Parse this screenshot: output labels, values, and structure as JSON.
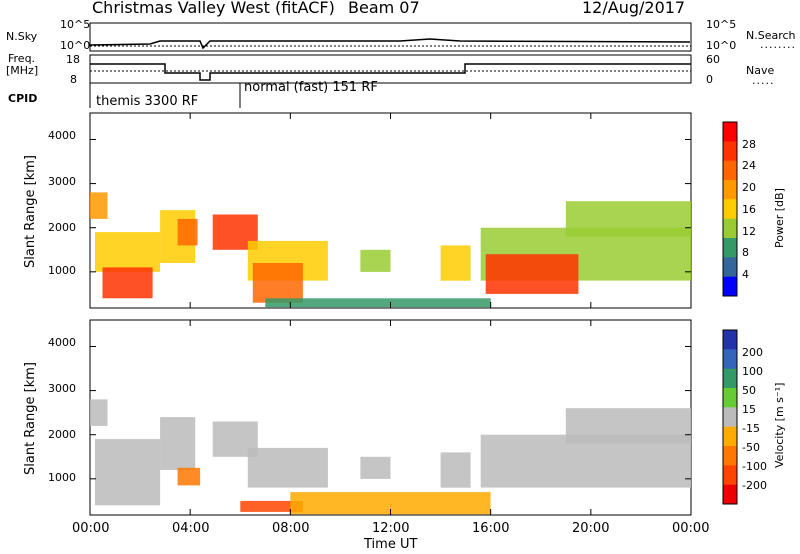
{
  "header": {
    "title": "Christmas Valley West (fitACF)",
    "beam": "Beam 07",
    "date": "12/Aug/2017"
  },
  "panels": {
    "nsky": {
      "left_label": "N.Sky",
      "right_label": "N.Search",
      "left_ticks": [
        "10^5",
        "10^0"
      ],
      "right_ticks": [
        "10^5",
        "10^0"
      ]
    },
    "freq": {
      "left_label_1": "Freq.",
      "left_label_2": "[MHz]",
      "right_label": "Nave",
      "left_ticks": [
        "18",
        "8"
      ],
      "right_ticks": [
        "60",
        "0"
      ]
    },
    "cpid": {
      "label": "CPID",
      "modes": [
        {
          "name": "themis 3300 RF",
          "start_hour": 0.0
        },
        {
          "name": "normal (fast) 151 RF",
          "start_hour": 6.0
        }
      ]
    }
  },
  "axes": {
    "ylabel": "Slant Range [km]",
    "yticks": [
      "4000",
      "3000",
      "2000",
      "1000"
    ],
    "xlabel": "Time UT",
    "xticks": [
      "00:00",
      "04:00",
      "08:00",
      "12:00",
      "16:00",
      "20:00",
      "00:00"
    ]
  },
  "colorbars": {
    "power": {
      "label": "Power [dB]",
      "ticks": [
        "28",
        "24",
        "20",
        "16",
        "12",
        "8",
        "4"
      ],
      "colors": [
        "#ff0000",
        "#ff3300",
        "#ff6600",
        "#ff9900",
        "#ffcc00",
        "#99cc33",
        "#339966",
        "#336699",
        "#0000ff"
      ]
    },
    "velocity": {
      "label": "Velocity [m s⁻¹]",
      "ticks": [
        "200",
        "100",
        "50",
        "15",
        "-15",
        "-50",
        "-100",
        "-200"
      ],
      "colors": [
        "#2233aa",
        "#3366bb",
        "#339966",
        "#66cc33",
        "#bbbbbb",
        "#ffaa00",
        "#ff7700",
        "#ff4400",
        "#ee0000"
      ]
    }
  },
  "chart_data": [
    {
      "type": "heatmap",
      "title": "Power",
      "xlabel": "Time UT",
      "ylabel": "Slant Range [km]",
      "xlim_hours": [
        0,
        24
      ],
      "ylim_km": [
        180,
        4600
      ],
      "colorbar_range_dB": [
        0,
        30
      ],
      "regions": [
        {
          "t0": 0.0,
          "t1": 0.7,
          "r0": 2200,
          "r1": 2800,
          "value": 18
        },
        {
          "t0": 0.2,
          "t1": 2.8,
          "r0": 1000,
          "r1": 1900,
          "value": 14
        },
        {
          "t0": 0.5,
          "t1": 2.5,
          "r0": 400,
          "r1": 1100,
          "value": 26
        },
        {
          "t0": 2.8,
          "t1": 4.2,
          "r0": 1200,
          "r1": 2400,
          "value": 15
        },
        {
          "t0": 3.5,
          "t1": 4.3,
          "r0": 1600,
          "r1": 2200,
          "value": 22
        },
        {
          "t0": 4.9,
          "t1": 6.7,
          "r0": 1500,
          "r1": 2300,
          "value": 25
        },
        {
          "t0": 6.3,
          "t1": 9.5,
          "r0": 800,
          "r1": 1700,
          "value": 14
        },
        {
          "t0": 6.5,
          "t1": 8.5,
          "r0": 300,
          "r1": 1200,
          "value": 23
        },
        {
          "t0": 7.0,
          "t1": 16.0,
          "r0": 200,
          "r1": 400,
          "value": 9
        },
        {
          "t0": 10.8,
          "t1": 12.0,
          "r0": 1000,
          "r1": 1500,
          "value": 13
        },
        {
          "t0": 14.0,
          "t1": 15.2,
          "r0": 800,
          "r1": 1600,
          "value": 14
        },
        {
          "t0": 15.6,
          "t1": 24.0,
          "r0": 800,
          "r1": 2000,
          "value": 13
        },
        {
          "t0": 15.8,
          "t1": 19.5,
          "r0": 500,
          "r1": 1400,
          "value": 24
        },
        {
          "t0": 19.0,
          "t1": 24.0,
          "r0": 1800,
          "r1": 2600,
          "value": 12
        }
      ]
    },
    {
      "type": "heatmap",
      "title": "Velocity",
      "xlabel": "Time UT",
      "ylabel": "Slant Range [km]",
      "xlim_hours": [
        0,
        24
      ],
      "ylim_km": [
        180,
        4600
      ],
      "colorbar_range_ms": [
        -200,
        200
      ],
      "regions": [
        {
          "t0": 0.0,
          "t1": 0.7,
          "r0": 2200,
          "r1": 2800,
          "value": 0
        },
        {
          "t0": 0.2,
          "t1": 2.8,
          "r0": 400,
          "r1": 1900,
          "value": 0
        },
        {
          "t0": 2.8,
          "t1": 4.2,
          "r0": 1200,
          "r1": 2400,
          "value": 0
        },
        {
          "t0": 3.5,
          "t1": 4.4,
          "r0": 850,
          "r1": 1250,
          "value": -60
        },
        {
          "t0": 4.9,
          "t1": 6.7,
          "r0": 1500,
          "r1": 2300,
          "value": 0
        },
        {
          "t0": 6.3,
          "t1": 9.5,
          "r0": 800,
          "r1": 1700,
          "value": 0
        },
        {
          "t0": 6.0,
          "t1": 8.5,
          "r0": 250,
          "r1": 500,
          "value": -110
        },
        {
          "t0": 8.0,
          "t1": 16.0,
          "r0": 200,
          "r1": 700,
          "value": -30
        },
        {
          "t0": 10.8,
          "t1": 12.0,
          "r0": 1000,
          "r1": 1500,
          "value": 0
        },
        {
          "t0": 14.0,
          "t1": 15.2,
          "r0": 800,
          "r1": 1600,
          "value": 0
        },
        {
          "t0": 15.6,
          "t1": 24.0,
          "r0": 800,
          "r1": 2000,
          "value": 0
        },
        {
          "t0": 19.0,
          "t1": 24.0,
          "r0": 1800,
          "r1": 2600,
          "value": 0
        }
      ]
    }
  ]
}
